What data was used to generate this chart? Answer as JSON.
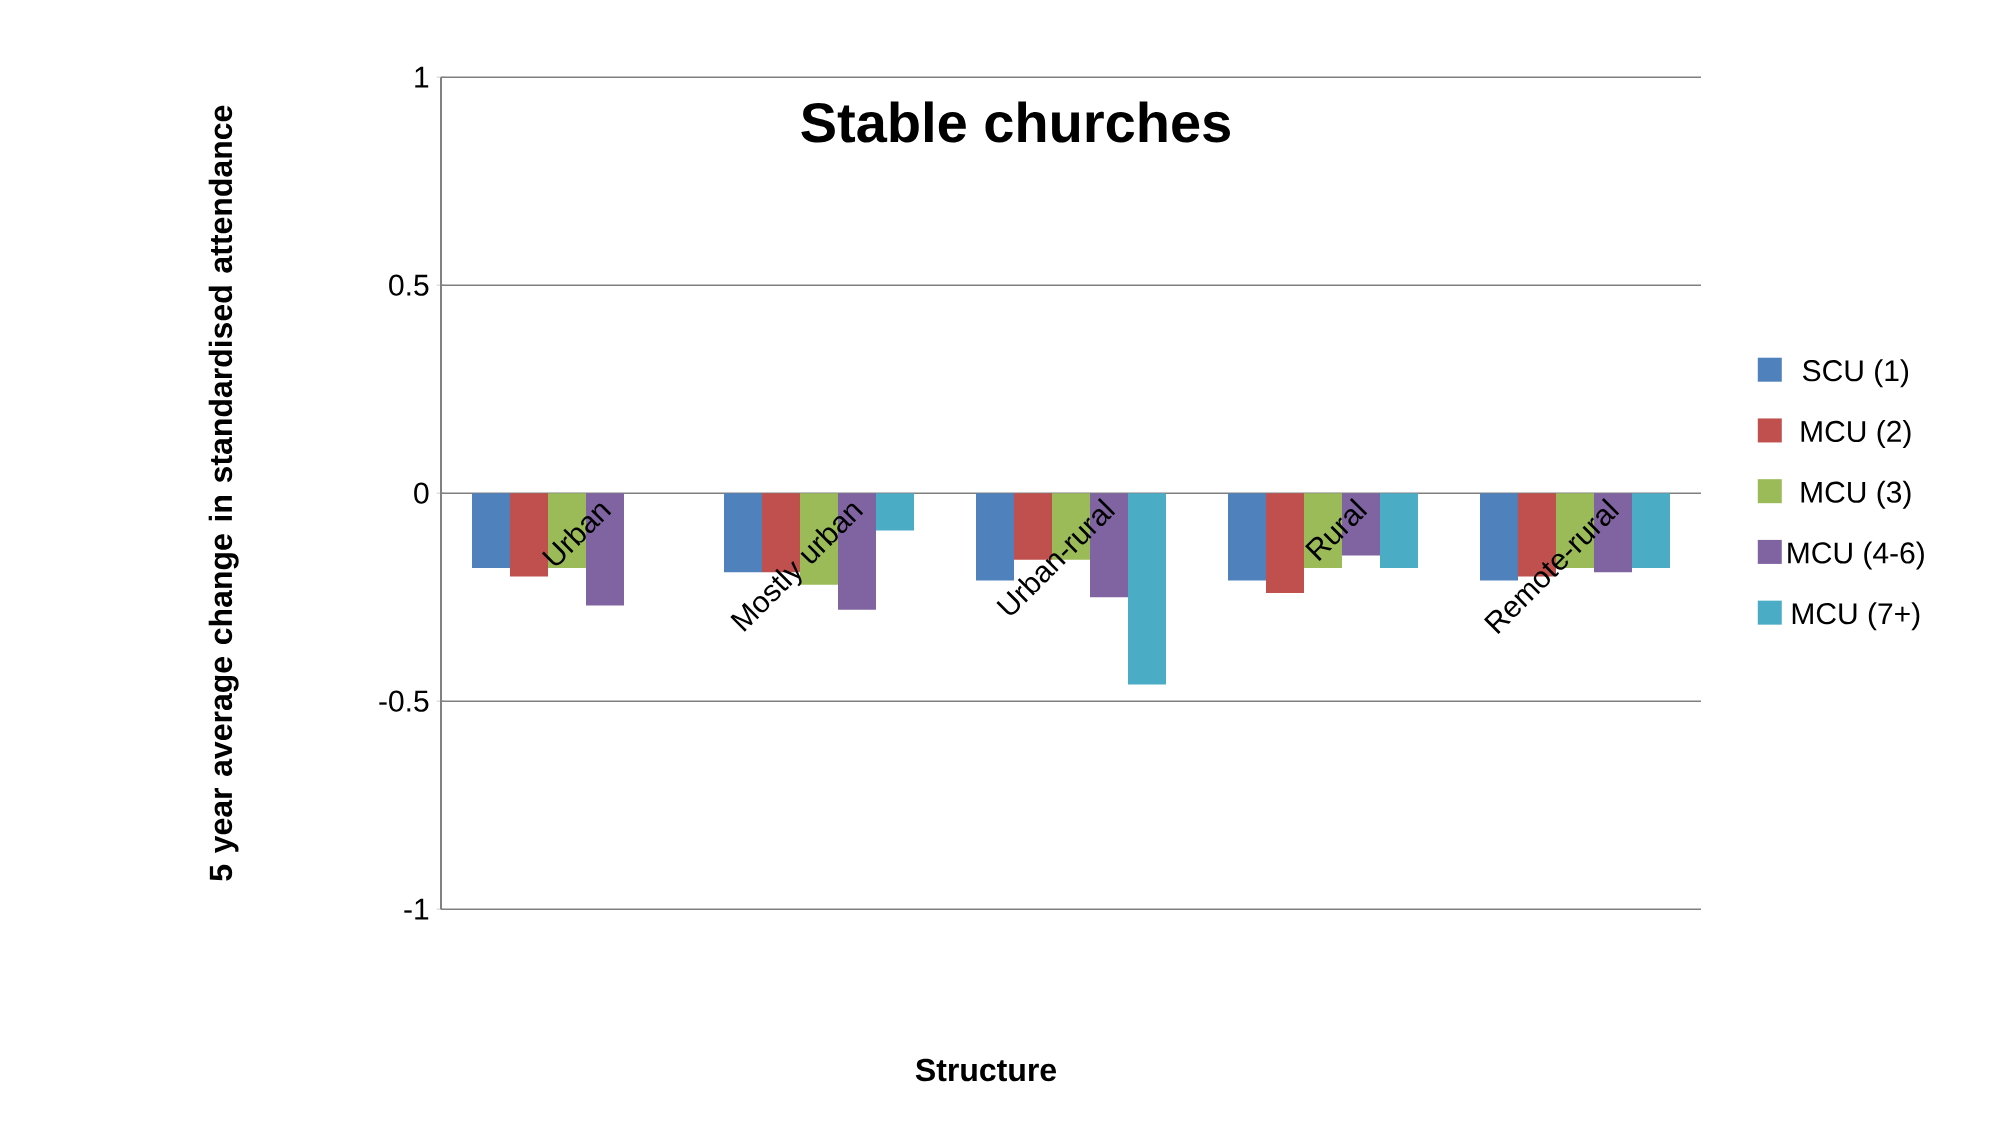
{
  "chart_data": {
    "type": "bar",
    "title": "Stable churches",
    "xlabel": "Structure",
    "ylabel": "5 year average change in standardised attendance",
    "categories": [
      "Urban",
      "Mostly urban",
      "Urban-rural",
      "Rural",
      "Remote-rural"
    ],
    "series": [
      {
        "name": "SCU (1)",
        "color": "#4f81bd",
        "values": [
          -0.18,
          -0.19,
          -0.21,
          -0.21,
          -0.21
        ]
      },
      {
        "name": "MCU (2)",
        "color": "#c0504d",
        "values": [
          -0.2,
          -0.19,
          -0.16,
          -0.24,
          -0.2
        ]
      },
      {
        "name": "MCU (3)",
        "color": "#9bbb59",
        "values": [
          -0.18,
          -0.22,
          -0.16,
          -0.18,
          -0.18
        ]
      },
      {
        "name": "MCU (4-6)",
        "color": "#8064a2",
        "values": [
          -0.27,
          -0.28,
          -0.25,
          -0.15,
          -0.19
        ]
      },
      {
        "name": "MCU (7+)",
        "color": "#4bacc6",
        "values": [
          null,
          -0.09,
          -0.46,
          -0.18,
          -0.18
        ]
      }
    ],
    "ylim": [
      -1,
      1
    ],
    "yticks": [
      -1,
      -0.5,
      0,
      0.5,
      1
    ],
    "grid": "y",
    "legend": "right"
  }
}
